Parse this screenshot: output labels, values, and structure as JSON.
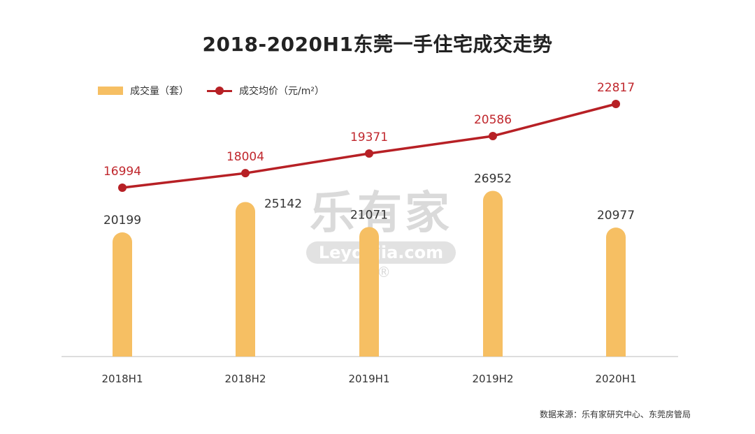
{
  "title": "2018-2020H1东莞一手住宅成交走势",
  "legend": {
    "bar_label": "成交量（套）",
    "line_label": "成交均价（元/m²）"
  },
  "source": "数据来源：乐有家研究中心、东莞房管局",
  "watermark": {
    "logo": "乐有家",
    "url": "Leyoujia.com",
    "reg": "®"
  },
  "colors": {
    "bar": "#F6BF63",
    "line": "#B72025",
    "line_label": "#C0272D",
    "bar_label": "#333333",
    "axis": "#BBBBBB"
  },
  "chart_data": {
    "type": "bar",
    "categories": [
      "2018H1",
      "2018H2",
      "2019H1",
      "2019H2",
      "2020H1"
    ],
    "series": [
      {
        "name": "成交量（套）",
        "type": "bar",
        "values": [
          20199,
          25142,
          21071,
          26952,
          20977
        ]
      },
      {
        "name": "成交均价（元/m²）",
        "type": "line",
        "values": [
          16994,
          18004,
          19371,
          20586,
          22817
        ]
      }
    ],
    "title": "2018-2020H1东莞一手住宅成交走势",
    "xlabel": "",
    "ylabel": "",
    "grid": false,
    "legend_position": "top-left"
  }
}
